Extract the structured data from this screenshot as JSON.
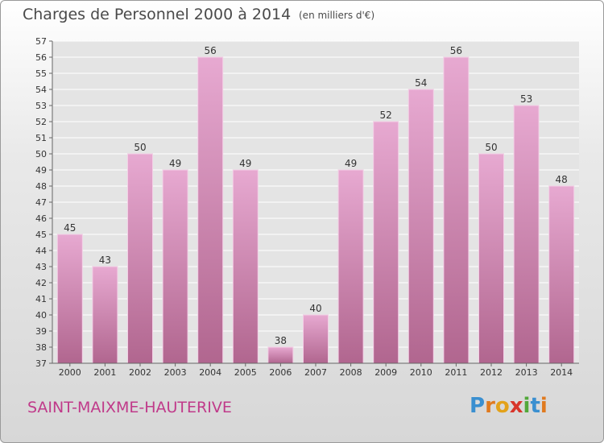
{
  "header": {
    "title": "Charges de Personnel 2000 à 2014",
    "subtitle": "(en milliers d'€)"
  },
  "footer": {
    "town": "SAINT-MAIXME-HAUTERIVE",
    "brand": "Proxiti"
  },
  "colors": {
    "bar_top": "#e7a9d1",
    "bar_bottom": "#b1668f",
    "title": "#4a4a4a",
    "town": "#c03a8a",
    "grid": "#ffffff"
  },
  "chart_data": {
    "type": "bar",
    "title": "Charges de Personnel 2000 à 2014",
    "subtitle": "(en milliers d'€)",
    "xlabel": "",
    "ylabel": "",
    "categories": [
      "2000",
      "2001",
      "2002",
      "2003",
      "2004",
      "2005",
      "2006",
      "2007",
      "2008",
      "2009",
      "2010",
      "2011",
      "2012",
      "2013",
      "2014"
    ],
    "values": [
      45,
      43,
      50,
      49,
      56,
      49,
      38,
      40,
      49,
      52,
      54,
      56,
      50,
      53,
      48
    ],
    "ylim": [
      37,
      57
    ],
    "yticks": [
      "37",
      "38",
      "39",
      "40",
      "41",
      "42",
      "43",
      "44",
      "45",
      "46",
      "47",
      "48",
      "49",
      "50",
      "51",
      "52",
      "53",
      "54",
      "55",
      "56",
      "57"
    ],
    "grid": true,
    "data_labels": true
  }
}
